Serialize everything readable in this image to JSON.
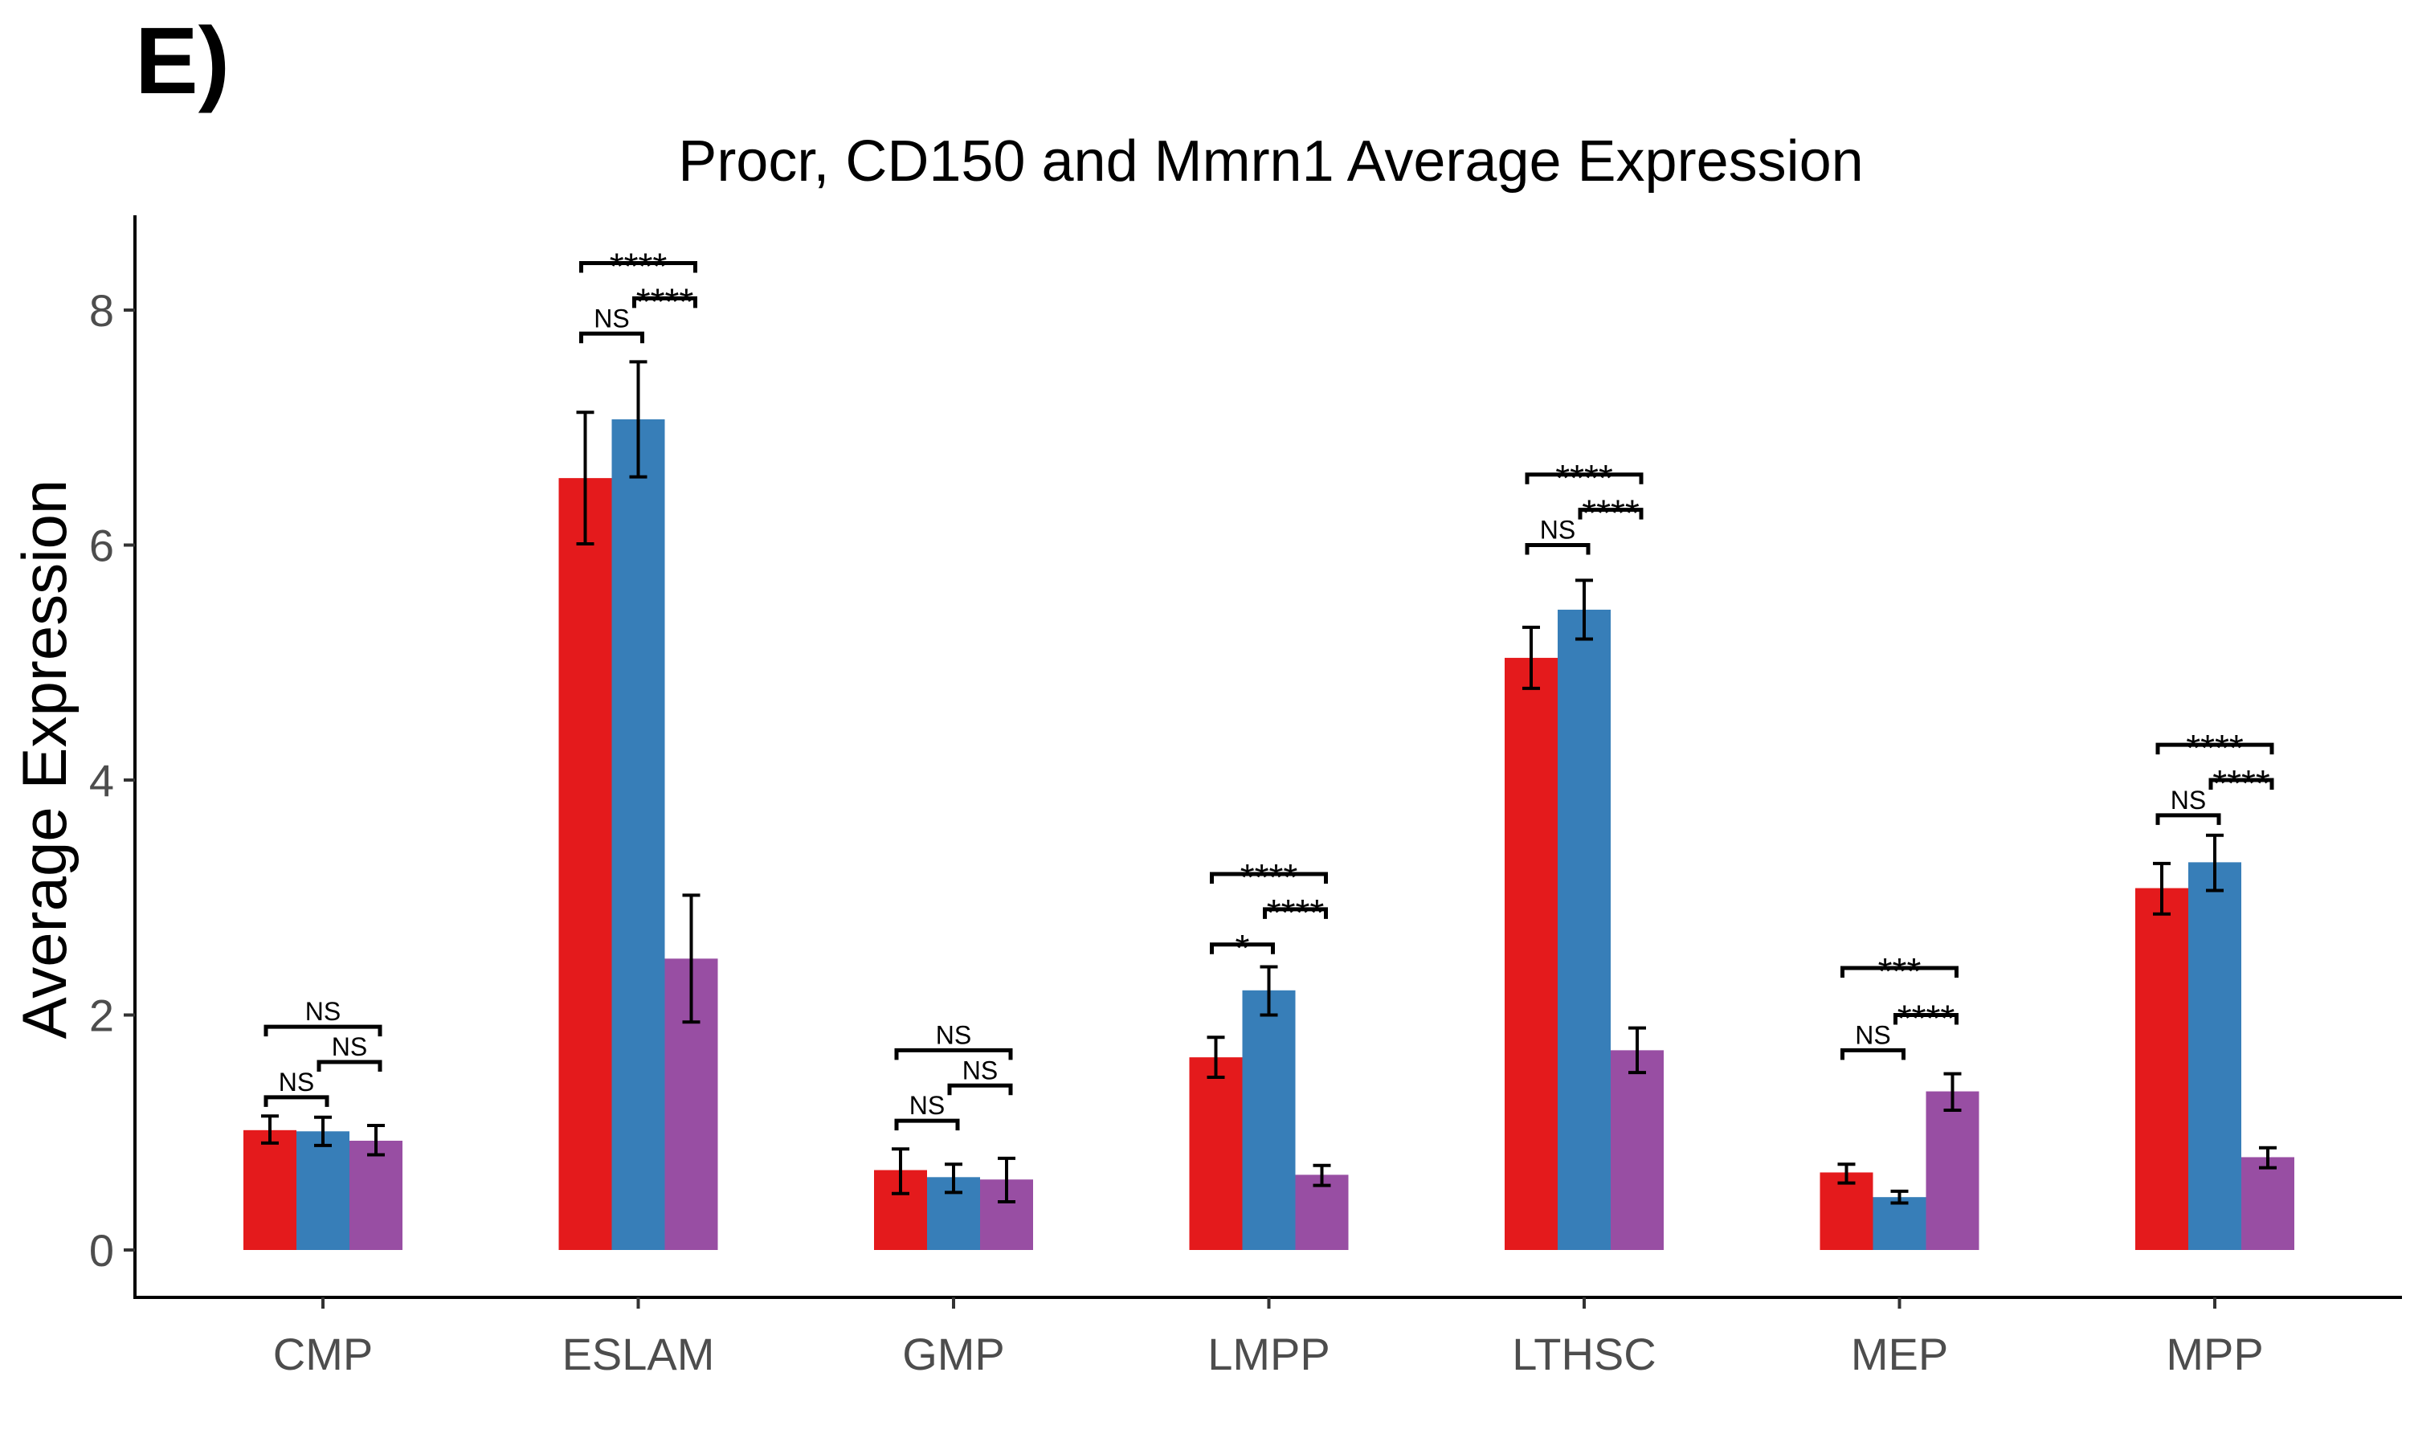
{
  "panel_label": "E)",
  "chart_data": {
    "type": "bar",
    "title": "Procr, CD150 and Mmrn1 Average Expression",
    "xlabel": "",
    "ylabel": "Average Expression",
    "ylim": [
      0,
      8.8
    ],
    "yticks": [
      "0",
      "2",
      "4",
      "6",
      "8"
    ],
    "categories": [
      "CMP",
      "ESLAM",
      "GMP",
      "LMPP",
      "LTHSC",
      "MEP",
      "MPP"
    ],
    "grid": false,
    "legend": "none",
    "colors": [
      "#E41A1C",
      "#377EB8",
      "#984EA3"
    ],
    "series": [
      {
        "values": [
          1.02,
          6.57,
          0.68,
          1.64,
          5.04,
          0.66,
          3.08
        ],
        "err_low": [
          0.91,
          6.01,
          0.48,
          1.47,
          4.78,
          0.57,
          2.86
        ],
        "err_high": [
          1.14,
          7.13,
          0.86,
          1.81,
          5.3,
          0.73,
          3.29
        ]
      },
      {
        "values": [
          1.01,
          7.07,
          0.62,
          2.21,
          5.45,
          0.45,
          3.3
        ],
        "err_low": [
          0.89,
          6.58,
          0.49,
          2.0,
          5.2,
          0.4,
          3.06
        ],
        "err_high": [
          1.13,
          7.56,
          0.73,
          2.41,
          5.7,
          0.5,
          3.53
        ]
      },
      {
        "values": [
          0.93,
          2.48,
          0.6,
          0.64,
          1.7,
          1.35,
          0.79
        ],
        "err_low": [
          0.81,
          1.94,
          0.41,
          0.55,
          1.51,
          1.19,
          0.7
        ],
        "err_high": [
          1.06,
          3.02,
          0.78,
          0.72,
          1.89,
          1.5,
          0.87
        ]
      }
    ],
    "annotations": [
      {
        "labels": [
          "NS",
          "NS",
          "NS"
        ],
        "y": [
          1.3,
          1.9,
          1.6
        ]
      },
      {
        "labels": [
          "NS",
          "****",
          "****"
        ],
        "y": [
          7.8,
          8.4,
          8.1
        ]
      },
      {
        "labels": [
          "NS",
          "NS",
          "NS"
        ],
        "y": [
          1.1,
          1.7,
          1.4
        ]
      },
      {
        "labels": [
          "*",
          "****",
          "****"
        ],
        "y": [
          2.6,
          3.2,
          2.9
        ]
      },
      {
        "labels": [
          "NS",
          "****",
          "****"
        ],
        "y": [
          6.0,
          6.6,
          6.3
        ]
      },
      {
        "labels": [
          "NS",
          "***",
          "****"
        ],
        "y": [
          1.7,
          2.4,
          2.0
        ]
      },
      {
        "labels": [
          "NS",
          "****",
          "****"
        ],
        "y": [
          3.7,
          4.3,
          4.0
        ]
      }
    ]
  }
}
